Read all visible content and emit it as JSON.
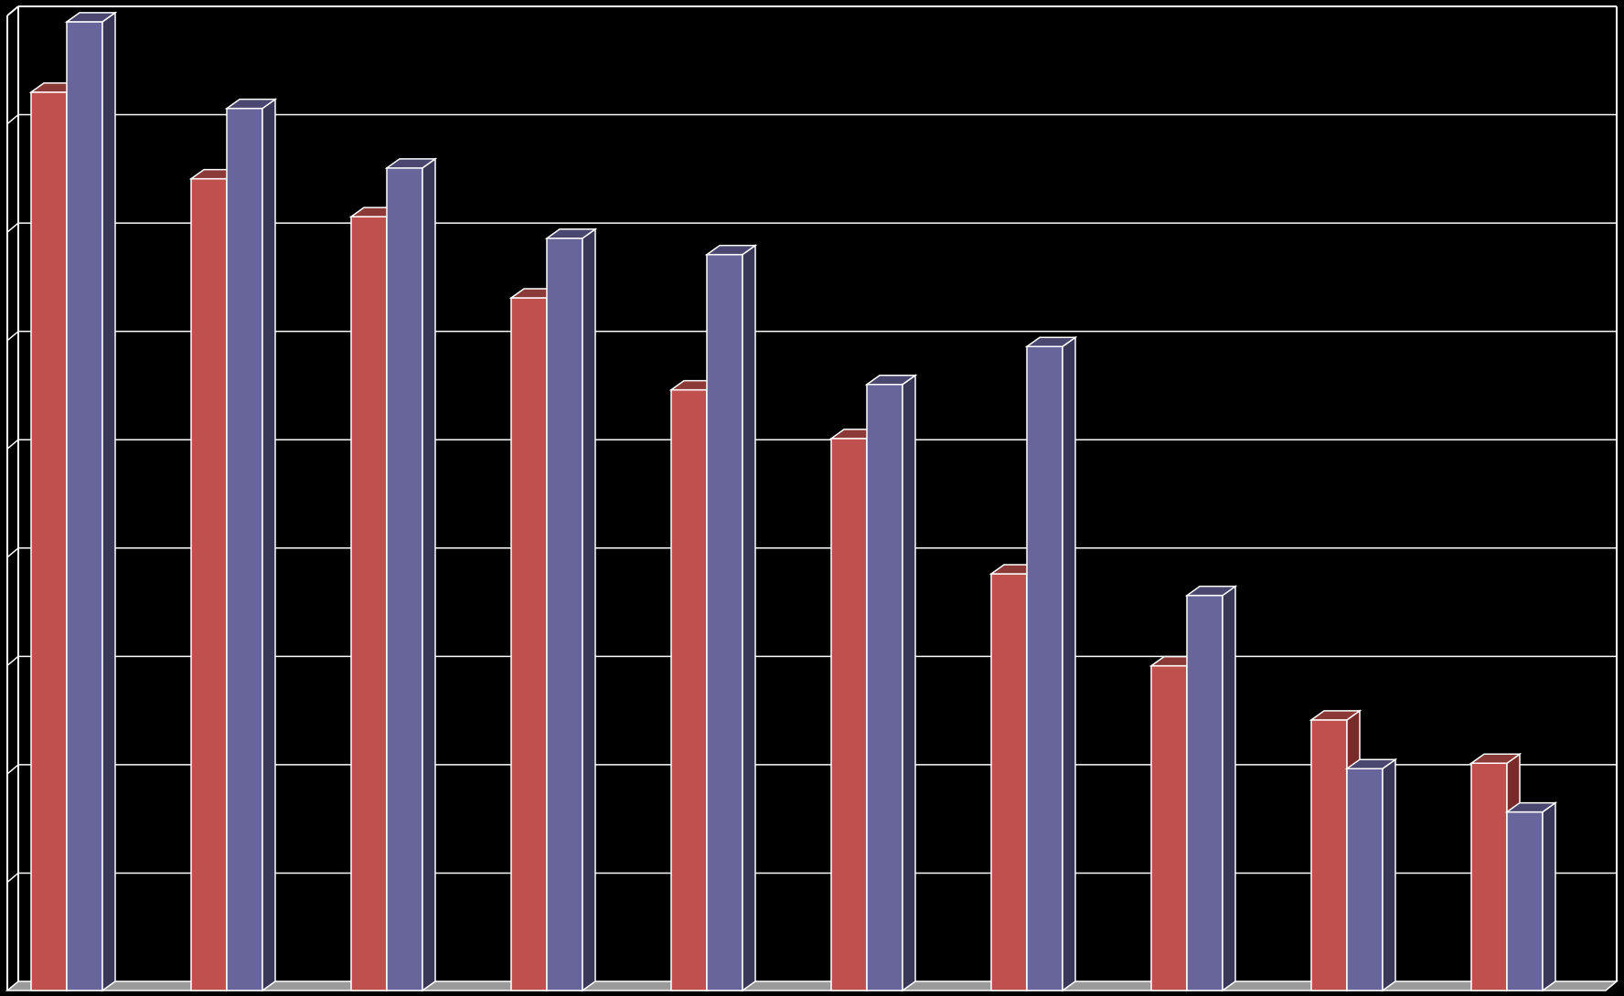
{
  "chart_data": {
    "type": "bar",
    "style": "3d-clustered",
    "categories": [
      "",
      "",
      "",
      "",
      "",
      "",
      "",
      "",
      "",
      ""
    ],
    "series": [
      {
        "values": [
          8.3,
          7.5,
          7.15,
          6.4,
          5.55,
          5.1,
          3.85,
          3.0,
          2.5,
          2.1
        ]
      },
      {
        "values": [
          8.95,
          8.15,
          7.6,
          6.95,
          6.8,
          5.6,
          5.95,
          3.65,
          2.05,
          1.65
        ]
      }
    ],
    "ylim": [
      0,
      9
    ],
    "grid": true,
    "legend": "none",
    "colors": {
      "background": "#000000",
      "gridline": "#ffffff",
      "floor": "#9a9a9a",
      "series": [
        {
          "front": "#c0504d",
          "side": "#7a2a28",
          "top": "#8c3a37"
        },
        {
          "front": "#67659a",
          "side": "#3a3858",
          "top": "#4a4870"
        }
      ]
    }
  }
}
